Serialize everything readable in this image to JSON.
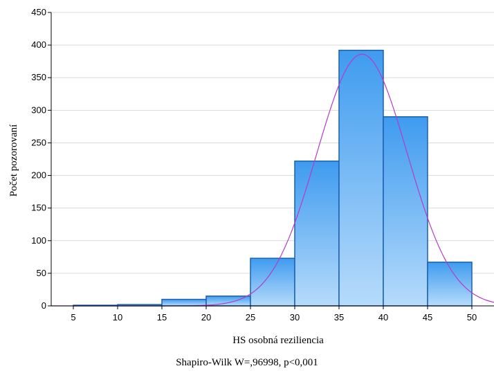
{
  "chart_data": {
    "type": "bar",
    "subtype": "histogram",
    "xlabel": "HS osobná reziliencia",
    "ylabel": "Počet pozorovaní",
    "xlim": [
      2.5,
      52.5
    ],
    "ylim": [
      0,
      450
    ],
    "x_ticks": [
      5,
      10,
      15,
      20,
      25,
      30,
      35,
      40,
      45,
      50
    ],
    "y_ticks": [
      0,
      50,
      100,
      150,
      200,
      250,
      300,
      350,
      400,
      450
    ],
    "grid": true,
    "bins": [
      {
        "from": 5,
        "to": 10,
        "value": 1
      },
      {
        "from": 10,
        "to": 15,
        "value": 2
      },
      {
        "from": 15,
        "to": 20,
        "value": 10
      },
      {
        "from": 20,
        "to": 25,
        "value": 15
      },
      {
        "from": 25,
        "to": 30,
        "value": 73
      },
      {
        "from": 30,
        "to": 35,
        "value": 222
      },
      {
        "from": 35,
        "to": 40,
        "value": 392
      },
      {
        "from": 40,
        "to": 45,
        "value": 290
      },
      {
        "from": 45,
        "to": 50,
        "value": 67
      }
    ],
    "normal_fit": {
      "mean": 37.6,
      "sd": 5.1,
      "peak": 386,
      "color": "#b23cc8"
    },
    "bar_color_top": "#3f9bef",
    "bar_color_bottom": "#b6dbfb",
    "bar_edge_color": "#1a5fb4",
    "annotation": "Shapiro-Wilk W=,96998, p<0,001"
  }
}
